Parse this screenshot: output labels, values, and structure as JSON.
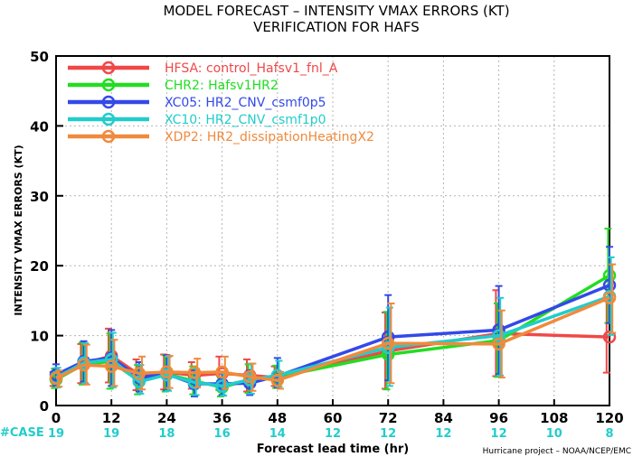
{
  "chart_data": {
    "type": "line",
    "title": "MODEL FORECAST – INTENSITY VMAX ERRORS (KT)",
    "subtitle": "VERIFICATION FOR HAFS",
    "xlabel": "Forecast lead time (hr)",
    "ylabel": "INTENSITY VMAX ERRORS  (KT)",
    "xlim": [
      0,
      120
    ],
    "ylim": [
      0,
      50
    ],
    "xticks": [
      0,
      12,
      24,
      36,
      48,
      60,
      72,
      84,
      96,
      108,
      120
    ],
    "yticks": [
      0,
      10,
      20,
      30,
      40,
      50
    ],
    "grid": true,
    "legend_position": "top-left",
    "series": [
      {
        "name": "HFSA: control_Hafsv1_fnl_A",
        "color": "#f04848",
        "x": [
          0,
          6,
          12,
          18,
          24,
          30,
          36,
          42,
          48,
          72,
          96,
          120
        ],
        "y": [
          3.8,
          6.0,
          7.1,
          4.4,
          4.8,
          4.3,
          4.6,
          4.3,
          4.0,
          7.8,
          10.3,
          9.8
        ],
        "err_low": [
          2.8,
          3.2,
          3.3,
          2.2,
          2.3,
          2.4,
          2.2,
          2.0,
          2.8,
          2.4,
          4.2,
          4.7
        ],
        "err_high": [
          4.8,
          8.8,
          11.0,
          6.6,
          7.3,
          6.2,
          7.0,
          6.6,
          5.6,
          13.3,
          16.5,
          15.0
        ]
      },
      {
        "name": "CHR2: Hafsv1HR2",
        "color": "#22dd22",
        "x": [
          0,
          6,
          12,
          18,
          24,
          30,
          36,
          42,
          48,
          72,
          96,
          120
        ],
        "y": [
          3.7,
          5.9,
          6.3,
          3.5,
          4.5,
          3.5,
          2.6,
          3.7,
          4.1,
          7.3,
          9.3,
          18.6
        ],
        "err_low": [
          2.5,
          3.0,
          2.4,
          1.6,
          2.0,
          1.6,
          1.3,
          1.8,
          2.5,
          2.3,
          4.1,
          11.8
        ],
        "err_high": [
          5.3,
          9.0,
          10.3,
          5.8,
          7.2,
          5.6,
          4.0,
          5.9,
          5.7,
          13.4,
          14.6,
          25.3
        ]
      },
      {
        "name": "XC05: HR2_CNV_csmf0p5",
        "color": "#3349e8",
        "x": [
          0,
          6,
          12,
          18,
          24,
          30,
          36,
          42,
          48,
          72,
          96,
          120
        ],
        "y": [
          4.4,
          6.3,
          6.8,
          4.0,
          4.5,
          3.1,
          3.1,
          3.2,
          4.2,
          9.8,
          10.8,
          17.2
        ],
        "err_low": [
          2.8,
          3.4,
          2.8,
          2.0,
          2.2,
          1.3,
          1.5,
          1.5,
          2.6,
          3.6,
          4.5,
          11.8
        ],
        "err_high": [
          5.9,
          9.2,
          10.8,
          6.2,
          7.2,
          5.0,
          4.8,
          5.0,
          6.8,
          15.8,
          17.1,
          22.7
        ]
      },
      {
        "name": "XC10: HR2_CNV_csmf1p0",
        "color": "#22cccc",
        "x": [
          0,
          6,
          12,
          18,
          24,
          30,
          36,
          42,
          48,
          72,
          96,
          120
        ],
        "y": [
          4.0,
          6.1,
          6.6,
          3.4,
          4.4,
          3.3,
          2.8,
          3.7,
          4.3,
          8.3,
          10.0,
          15.6
        ],
        "err_low": [
          2.6,
          3.2,
          2.6,
          1.7,
          2.1,
          1.5,
          1.4,
          1.7,
          2.7,
          2.8,
          4.3,
          10.1
        ],
        "err_high": [
          5.4,
          8.9,
          10.4,
          5.8,
          7.0,
          5.3,
          4.6,
          6.0,
          6.4,
          14.0,
          15.4,
          21.2
        ]
      },
      {
        "name": "XDP2: HR2_dissipationHeatingX2",
        "color": "#f08a3c",
        "x": [
          0,
          6,
          12,
          18,
          24,
          30,
          36,
          42,
          48,
          72,
          96,
          120
        ],
        "y": [
          3.9,
          5.8,
          5.6,
          4.6,
          4.8,
          4.7,
          4.8,
          4.1,
          3.6,
          8.9,
          8.8,
          15.4
        ],
        "err_low": [
          2.7,
          3.0,
          2.8,
          2.3,
          2.5,
          2.6,
          2.4,
          2.1,
          2.4,
          3.2,
          4.0,
          10.4
        ],
        "err_high": [
          5.0,
          8.7,
          9.4,
          7.0,
          7.1,
          6.7,
          7.0,
          6.0,
          4.8,
          14.6,
          13.6,
          20.2
        ]
      }
    ],
    "cases": {
      "label": "#CASE",
      "x": [
        0,
        12,
        24,
        36,
        48,
        72,
        96,
        120
      ],
      "values": [
        "19",
        "19",
        "18",
        "16",
        "14",
        "12",
        "12",
        "8"
      ],
      "x_extra": [
        60,
        84,
        108
      ],
      "values_extra": [
        "12",
        "12",
        "10"
      ]
    },
    "credit": "Hurricane project – NOAA/NCEP/EMC"
  }
}
